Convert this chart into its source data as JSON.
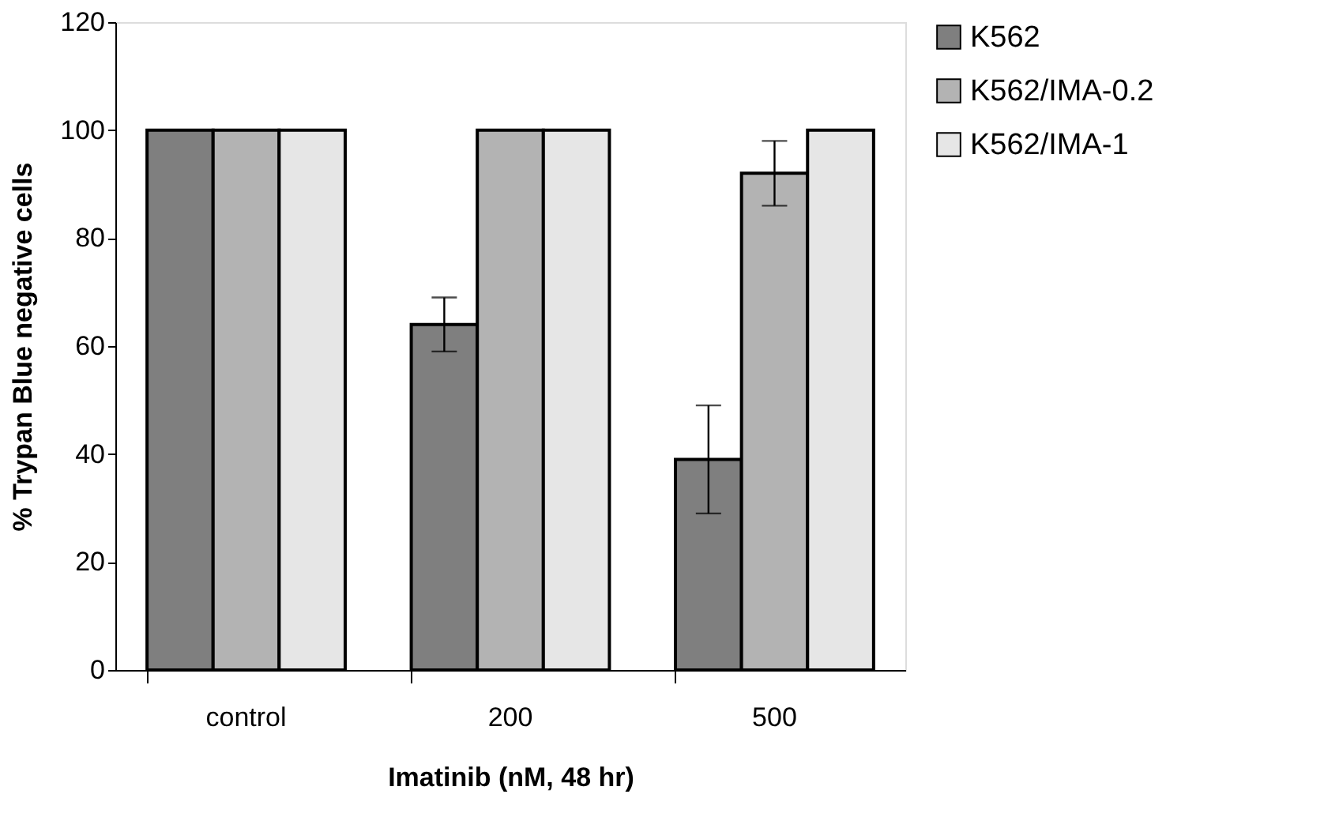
{
  "chart_data": {
    "type": "bar",
    "xlabel": "Imatinib (nM, 48 hr)",
    "ylabel": "% Trypan Blue negative cells",
    "categories": [
      "control",
      "200",
      "500"
    ],
    "series": [
      {
        "name": "K562",
        "color": "#7f7f7f",
        "values": [
          100,
          64,
          39
        ],
        "errors": [
          null,
          5,
          10
        ]
      },
      {
        "name": "K562/IMA-0.2",
        "color": "#b3b3b3",
        "values": [
          100,
          100,
          92
        ],
        "errors": [
          null,
          null,
          6
        ]
      },
      {
        "name": "K562/IMA-1",
        "color": "#e6e6e6",
        "values": [
          100,
          100,
          100
        ],
        "errors": [
          null,
          null,
          null
        ]
      }
    ],
    "ylim": [
      0,
      120
    ],
    "yticks": [
      0,
      20,
      40,
      60,
      80,
      100,
      120
    ],
    "grid": false,
    "legend": "top right"
  }
}
